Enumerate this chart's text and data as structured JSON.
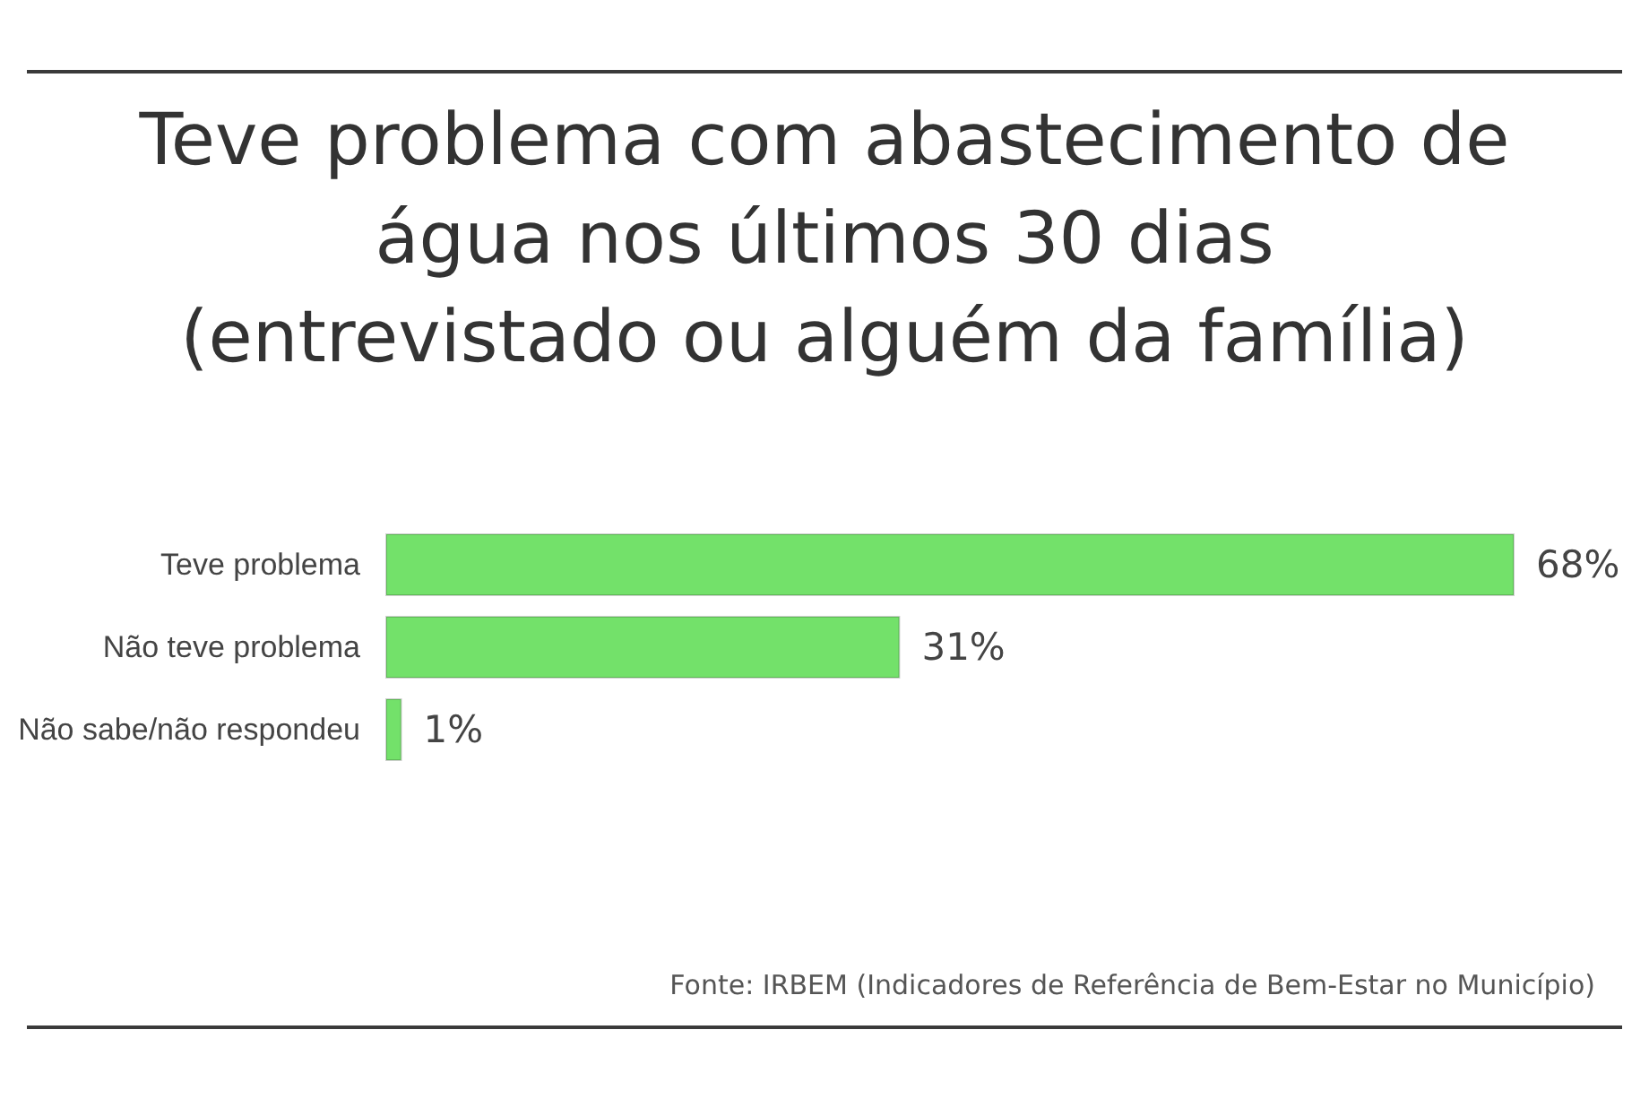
{
  "chart_data": {
    "type": "bar",
    "orientation": "horizontal",
    "title": "Teve problema com abastecimento de\nágua nos últimos 30 dias\n(entrevistado ou alguém da família)",
    "categories": [
      "Teve problema",
      "Não teve problema",
      "Não sabe/não respondeu"
    ],
    "values": [
      68,
      31,
      1
    ],
    "color": "#73e16a",
    "value_labels": [
      "68%",
      "31%",
      "1%"
    ],
    "annotations": [
      "Fonte: IRBEM (Indicadores de Referência de Bem-Estar no Município)"
    ]
  }
}
